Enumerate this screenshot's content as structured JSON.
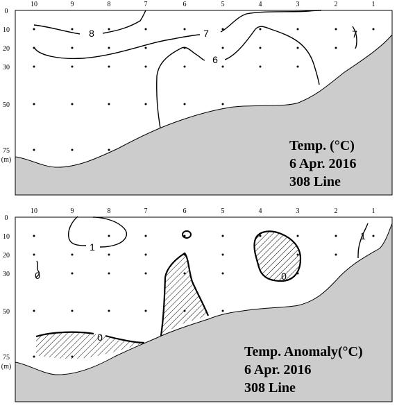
{
  "stations": [
    "10",
    "9",
    "8",
    "7",
    "6",
    "5",
    "4",
    "3",
    "2",
    "1"
  ],
  "depth_ticks": [
    "0",
    "10",
    "20",
    "30",
    "50",
    "75"
  ],
  "depth_unit": "(m)",
  "colors": {
    "seabed": "#cccccc",
    "contour": "#000000",
    "hatch": "#000000",
    "background": "#ffffff"
  },
  "panels": [
    {
      "id": "temperature",
      "caption_lines": [
        "Temp. (°C)",
        "6 Apr. 2016",
        "308 Line"
      ],
      "contour_labels": [
        "8",
        "7",
        "6",
        "7"
      ]
    },
    {
      "id": "temperature-anomaly",
      "caption_lines": [
        "Temp. Anomaly(°C)",
        "6 Apr. 2016",
        "308 Line"
      ],
      "contour_labels": [
        "1",
        "0",
        "0",
        "0",
        "1"
      ]
    }
  ]
}
